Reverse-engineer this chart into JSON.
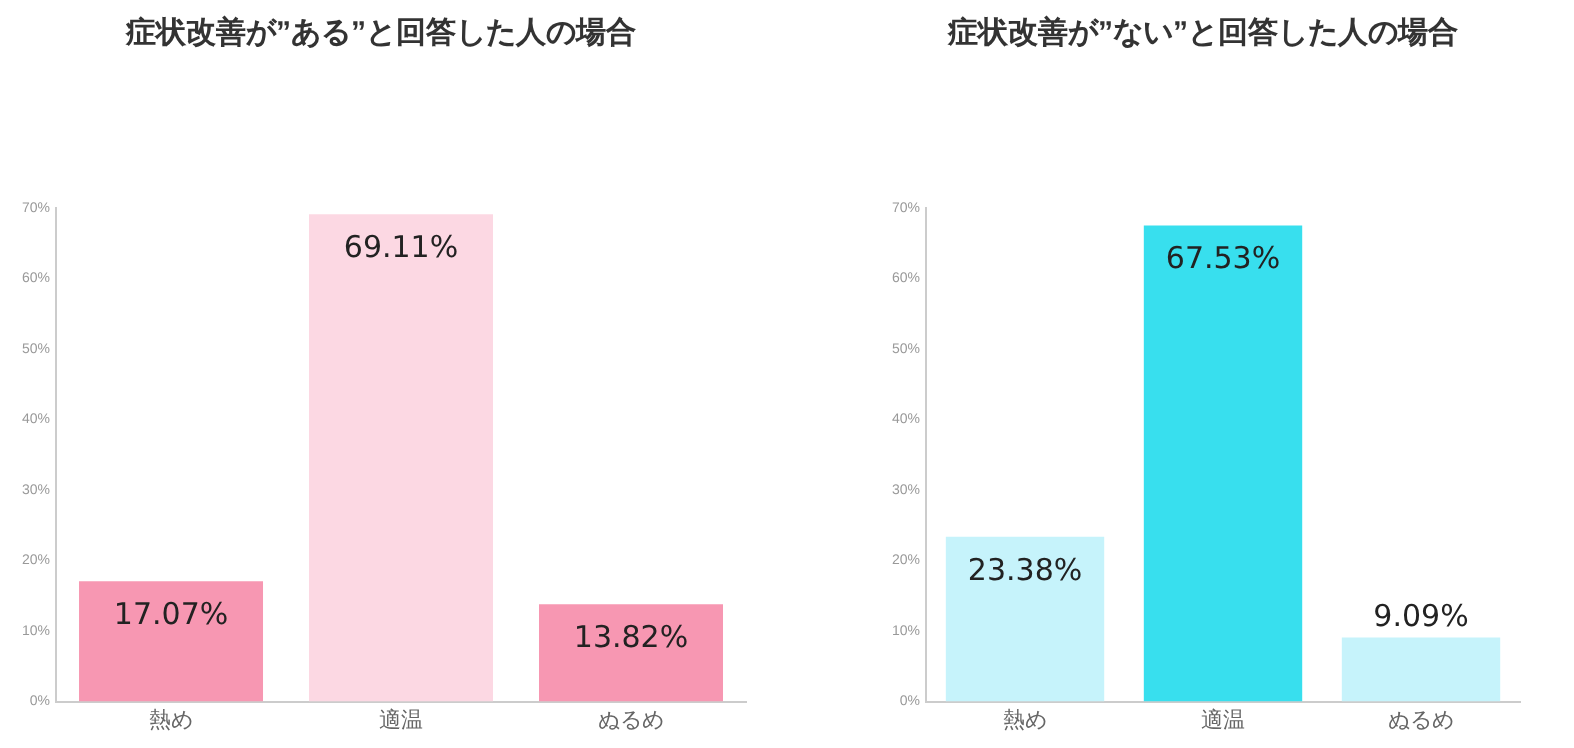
{
  "chart_data": [
    {
      "type": "bar",
      "title": "症状改善が”ある”と回答した人の場合",
      "categories": [
        "熱め",
        "適温",
        "ぬるめ"
      ],
      "values": [
        17.07,
        69.11,
        13.82
      ],
      "colors": [
        "#f797b2",
        "#fcd8e3",
        "#f797b2"
      ],
      "value_labels": [
        "17.07%",
        "69.11%",
        "13.82%"
      ],
      "ylim": [
        0,
        70
      ],
      "yticks": [
        {
          "value": 0,
          "label": "0%"
        },
        {
          "value": 10,
          "label": "10%"
        },
        {
          "value": 20,
          "label": "20%"
        },
        {
          "value": 30,
          "label": "30%"
        },
        {
          "value": 40,
          "label": "40%"
        },
        {
          "value": 50,
          "label": "50%"
        },
        {
          "value": 60,
          "label": "60%"
        },
        {
          "value": 70,
          "label": "70%"
        }
      ],
      "grid": false,
      "legend": false
    },
    {
      "type": "bar",
      "title": "症状改善が”ない”と回答した人の場合",
      "categories": [
        "熱め",
        "適温",
        "ぬるめ"
      ],
      "values": [
        23.38,
        67.53,
        9.09
      ],
      "colors": [
        "#c6f3fb",
        "#38dfee",
        "#c6f3fb"
      ],
      "value_labels": [
        "23.38%",
        "67.53%",
        "9.09%"
      ],
      "ylim": [
        0,
        70
      ],
      "yticks": [
        {
          "value": 0,
          "label": "0%"
        },
        {
          "value": 10,
          "label": "10%"
        },
        {
          "value": 20,
          "label": "20%"
        },
        {
          "value": 30,
          "label": "30%"
        },
        {
          "value": 40,
          "label": "40%"
        },
        {
          "value": 50,
          "label": "50%"
        },
        {
          "value": 60,
          "label": "60%"
        },
        {
          "value": 70,
          "label": "70%"
        }
      ],
      "grid": false,
      "legend": false
    }
  ]
}
